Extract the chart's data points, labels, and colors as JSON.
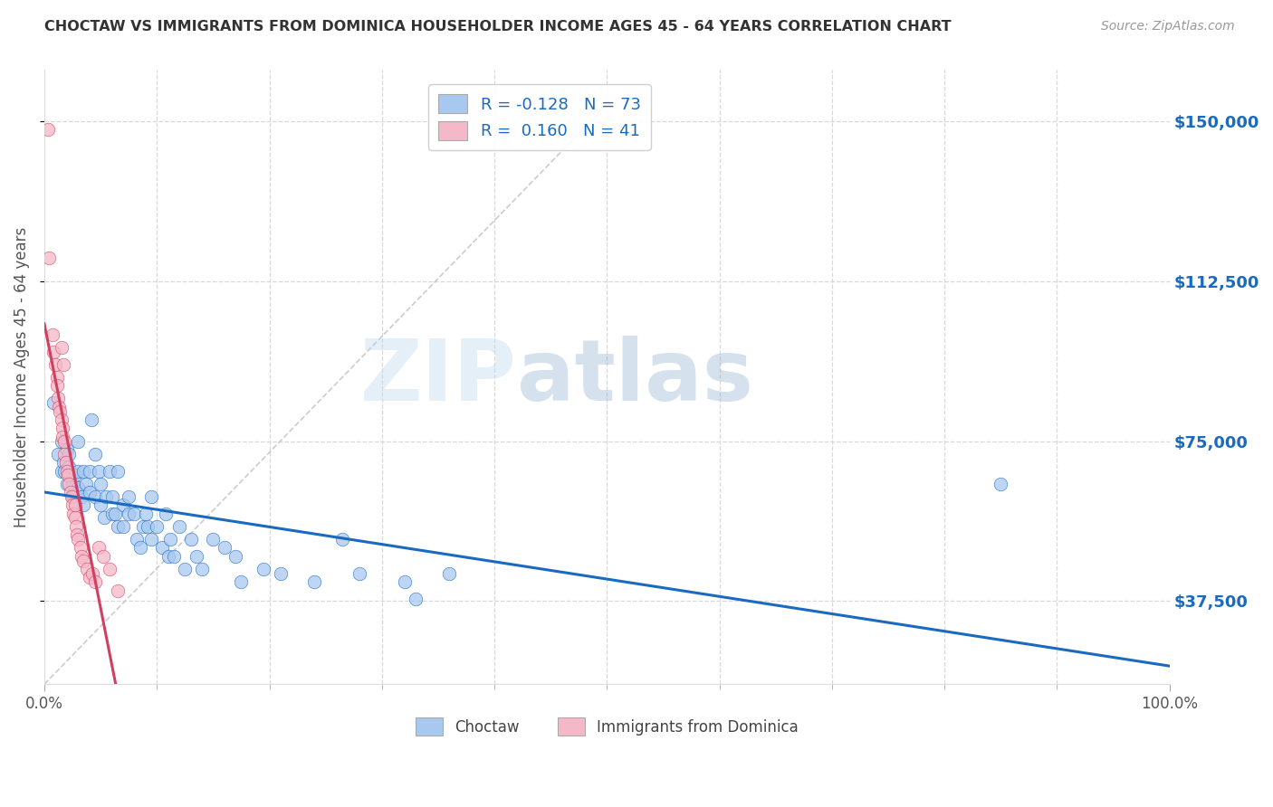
{
  "title": "CHOCTAW VS IMMIGRANTS FROM DOMINICA HOUSEHOLDER INCOME AGES 45 - 64 YEARS CORRELATION CHART",
  "source": "Source: ZipAtlas.com",
  "ylabel": "Householder Income Ages 45 - 64 years",
  "ytick_labels": [
    "$37,500",
    "$75,000",
    "$112,500",
    "$150,000"
  ],
  "ytick_values": [
    37500,
    75000,
    112500,
    150000
  ],
  "ymin": 18000,
  "ymax": 162000,
  "xmin": 0.0,
  "xmax": 1.0,
  "choctaw_color": "#a8c8f0",
  "dominica_color": "#f5b8c8",
  "choctaw_line_color": "#1a6bbf",
  "dominica_line_color": "#d04060",
  "diagonal_color": "#cccccc",
  "background_color": "#ffffff",
  "grid_color": "#d8d8d8",
  "title_color": "#333333",
  "source_color": "#999999",
  "axis_label_color": "#555555",
  "tick_color_right": "#1a6bbf",
  "choctaw_R": -0.128,
  "dominica_R": 0.16,
  "choctaw_N": 73,
  "dominica_N": 41,
  "watermark_text": "ZIPatlas",
  "watermark_color": "#c8ddf0",
  "legend_choctaw": "Choctaw",
  "legend_dominica": "Immigrants from Dominica",
  "choctaw_scatter_x": [
    0.008,
    0.012,
    0.015,
    0.015,
    0.017,
    0.018,
    0.02,
    0.02,
    0.022,
    0.022,
    0.025,
    0.025,
    0.027,
    0.028,
    0.03,
    0.03,
    0.03,
    0.033,
    0.035,
    0.035,
    0.037,
    0.04,
    0.04,
    0.042,
    0.045,
    0.045,
    0.048,
    0.05,
    0.05,
    0.053,
    0.055,
    0.058,
    0.06,
    0.06,
    0.063,
    0.065,
    0.065,
    0.07,
    0.07,
    0.075,
    0.075,
    0.08,
    0.082,
    0.085,
    0.088,
    0.09,
    0.092,
    0.095,
    0.095,
    0.1,
    0.105,
    0.108,
    0.11,
    0.112,
    0.115,
    0.12,
    0.125,
    0.13,
    0.135,
    0.14,
    0.15,
    0.16,
    0.17,
    0.175,
    0.195,
    0.21,
    0.24,
    0.265,
    0.28,
    0.32,
    0.33,
    0.36,
    0.85
  ],
  "choctaw_scatter_y": [
    84000,
    72000,
    68000,
    75000,
    70000,
    68000,
    73000,
    65000,
    69000,
    72000,
    65000,
    62000,
    67000,
    63000,
    75000,
    68000,
    64000,
    62000,
    68000,
    60000,
    65000,
    63000,
    68000,
    80000,
    62000,
    72000,
    68000,
    60000,
    65000,
    57000,
    62000,
    68000,
    58000,
    62000,
    58000,
    55000,
    68000,
    60000,
    55000,
    58000,
    62000,
    58000,
    52000,
    50000,
    55000,
    58000,
    55000,
    52000,
    62000,
    55000,
    50000,
    58000,
    48000,
    52000,
    48000,
    55000,
    45000,
    52000,
    48000,
    45000,
    52000,
    50000,
    48000,
    42000,
    45000,
    44000,
    42000,
    52000,
    44000,
    42000,
    38000,
    44000,
    65000
  ],
  "dominica_scatter_x": [
    0.003,
    0.004,
    0.007,
    0.008,
    0.01,
    0.011,
    0.011,
    0.012,
    0.013,
    0.014,
    0.015,
    0.015,
    0.016,
    0.016,
    0.017,
    0.018,
    0.018,
    0.019,
    0.02,
    0.021,
    0.022,
    0.023,
    0.024,
    0.025,
    0.026,
    0.027,
    0.027,
    0.028,
    0.029,
    0.03,
    0.032,
    0.033,
    0.035,
    0.038,
    0.04,
    0.043,
    0.045,
    0.048,
    0.052,
    0.058,
    0.065
  ],
  "dominica_scatter_y": [
    148000,
    118000,
    100000,
    96000,
    93000,
    90000,
    88000,
    85000,
    83000,
    82000,
    80000,
    97000,
    78000,
    76000,
    93000,
    75000,
    72000,
    70000,
    68000,
    67000,
    65000,
    63000,
    62000,
    60000,
    58000,
    57000,
    60000,
    55000,
    53000,
    52000,
    50000,
    48000,
    47000,
    45000,
    43000,
    44000,
    42000,
    50000,
    48000,
    45000,
    40000
  ]
}
